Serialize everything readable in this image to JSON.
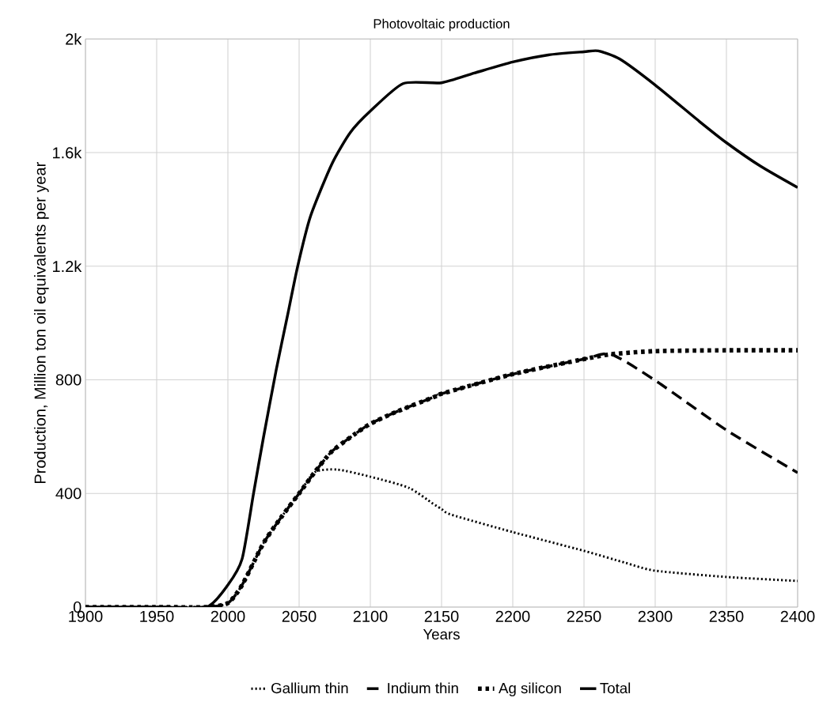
{
  "chart_data": {
    "type": "line",
    "title": "Photovoltaic production",
    "xlabel": "Years",
    "ylabel": "Production, Million ton oil equivalents per year",
    "xlim": [
      1900,
      2400
    ],
    "xticks": [
      1900,
      1950,
      2000,
      2050,
      2100,
      2150,
      2200,
      2250,
      2300,
      2350,
      2400
    ],
    "ylim": [
      0,
      2000
    ],
    "yticks": [
      0,
      400,
      800,
      {
        "value": 1200,
        "label": "1.2k"
      },
      {
        "value": 1600,
        "label": "1.6k"
      },
      {
        "value": 2000,
        "label": "2k"
      }
    ],
    "grid": true,
    "legend": "bottom",
    "series": [
      {
        "name": "Gallium thin",
        "color": "#000000",
        "line_style": "dotted",
        "x": [
          1900,
          1950,
          1985,
          2000,
          2010,
          2025,
          2038,
          2050,
          2061,
          2077,
          2100,
          2127,
          2144,
          2150,
          2157,
          2200,
          2250,
          2279,
          2300,
          2350,
          2400
        ],
        "values": [
          0,
          0,
          0,
          14,
          78,
          225,
          320,
          400,
          475,
          484,
          459,
          420,
          364,
          345,
          325,
          264,
          198,
          156,
          128,
          106,
          92
        ]
      },
      {
        "name": "Indium thin",
        "color": "#000000",
        "line_style": "dashed",
        "x": [
          1900,
          1950,
          1985,
          2000,
          2010,
          2025,
          2038,
          2050,
          2061,
          2073,
          2090,
          2100,
          2118,
          2146,
          2150,
          2200,
          2250,
          2269,
          2300,
          2350,
          2400
        ],
        "values": [
          0,
          0,
          0,
          14,
          78,
          225,
          320,
          400,
          475,
          548,
          612,
          645,
          687,
          742,
          751,
          820,
          873,
          890,
          798,
          623,
          473
        ]
      },
      {
        "name": "Ag silicon",
        "color": "#000000",
        "line_style": "dotted",
        "x": [
          1900,
          1950,
          1985,
          2000,
          2010,
          2025,
          2038,
          2050,
          2061,
          2073,
          2090,
          2100,
          2118,
          2146,
          2150,
          2200,
          2250,
          2269,
          2300,
          2350,
          2400
        ],
        "values": [
          0,
          0,
          0,
          14,
          78,
          225,
          320,
          400,
          475,
          548,
          612,
          645,
          687,
          742,
          751,
          820,
          873,
          890,
          901,
          904,
          904
        ]
      },
      {
        "name": "Total",
        "color": "#000000",
        "line_style": "solid",
        "x": [
          1900,
          1950,
          1985,
          2000,
          2010,
          2018,
          2025,
          2034,
          2042,
          2049,
          2058,
          2073,
          2086,
          2100,
          2123,
          2150,
          2173,
          2200,
          2225,
          2250,
          2260,
          2275,
          2300,
          2331,
          2350,
          2374,
          2400
        ],
        "values": [
          0,
          0,
          0,
          78,
          170,
          400,
          598,
          837,
          1030,
          1200,
          1376,
          1560,
          1671,
          1746,
          1843,
          1846,
          1880,
          1919,
          1944,
          1955,
          1958,
          1930,
          1838,
          1710,
          1635,
          1552,
          1477
        ]
      }
    ]
  }
}
